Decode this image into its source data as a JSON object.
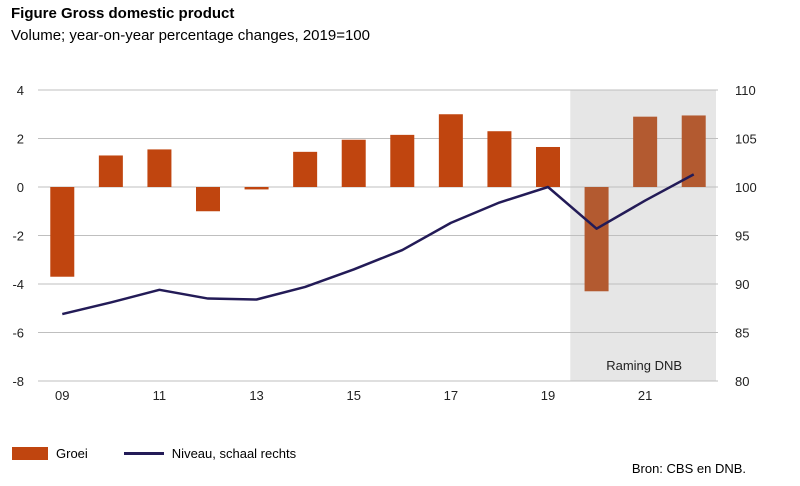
{
  "title": "Figure Gross domestic product",
  "subtitle": "Volume; year-on-year percentage changes, 2019=100",
  "source": "Bron: CBS en DNB.",
  "forecast_label": "Raming DNB",
  "legend": {
    "bar_label": "Groei",
    "line_label": "Niveau, schaal rechts"
  },
  "colors": {
    "bar": "#C0450F",
    "bar_forecast": "#B35A30",
    "line": "#231B57",
    "shade": "#E6E6E6",
    "grid": "#BFBFBF"
  },
  "chart_data": {
    "type": "bar",
    "x": [
      "09",
      "10",
      "11",
      "12",
      "13",
      "14",
      "15",
      "16",
      "17",
      "18",
      "19",
      "20",
      "21",
      "22"
    ],
    "x_tick_labels": [
      "09",
      "11",
      "13",
      "15",
      "17",
      "19",
      "21"
    ],
    "series": [
      {
        "name": "Groei",
        "type": "bar",
        "axis": "left",
        "values": [
          -3.7,
          1.3,
          1.55,
          -1.0,
          -0.1,
          1.45,
          1.95,
          2.15,
          3.0,
          2.3,
          1.65,
          -4.3,
          2.9,
          2.95
        ]
      },
      {
        "name": "Niveau, schaal rechts",
        "type": "line",
        "axis": "right",
        "values": [
          86.9,
          88.1,
          89.4,
          88.5,
          88.4,
          89.7,
          91.5,
          93.5,
          96.3,
          98.4,
          100.0,
          95.7,
          98.6,
          101.3
        ]
      }
    ],
    "y_left": {
      "ylim": [
        -8,
        4
      ],
      "ticks": [
        -8,
        -6,
        -4,
        -2,
        0,
        2,
        4
      ]
    },
    "y_right": {
      "ylim": [
        80,
        110
      ],
      "ticks": [
        80,
        85,
        90,
        95,
        100,
        105,
        110
      ]
    },
    "forecast_years": [
      "20",
      "21",
      "22"
    ],
    "grid": true,
    "legend_position": "bottom-left"
  }
}
